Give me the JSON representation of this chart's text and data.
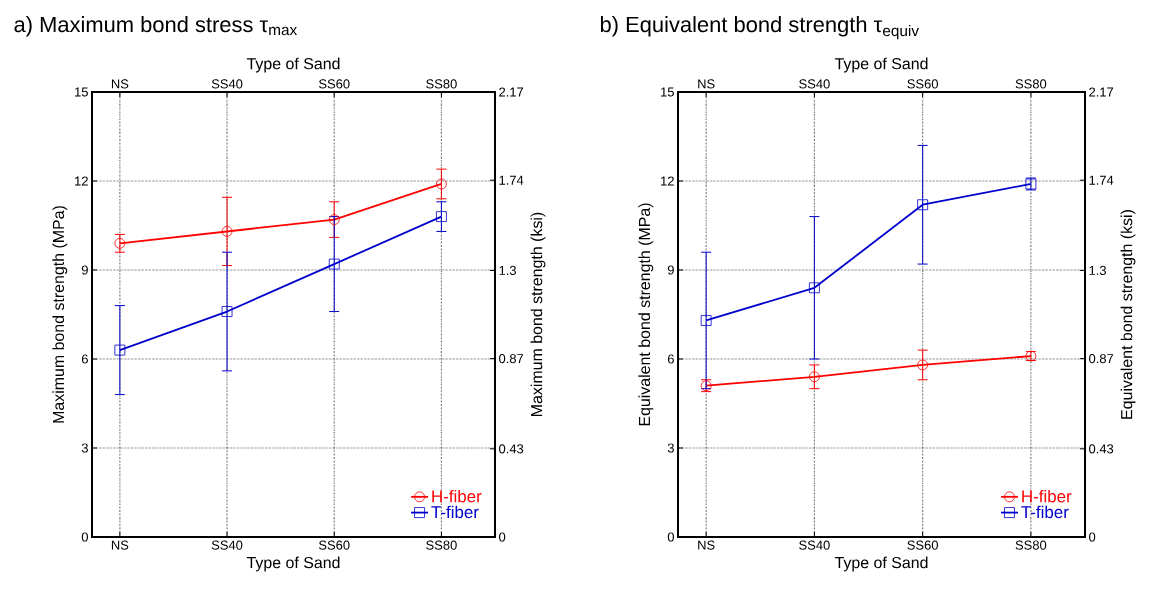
{
  "chart_data": [
    {
      "type": "line",
      "title": "a) Maximum bond stress τ$_{max}$",
      "xlabel": "Type of Sand",
      "x2label": "Type of Sand",
      "ylabel": "Maximum bond strength (MPa)",
      "y2label": "Maximum bond strength (ksi)",
      "categories": [
        "NS",
        "SS40",
        "SS60",
        "SS80"
      ],
      "ylim": [
        0,
        15
      ],
      "yticks": [
        0,
        3,
        6,
        9,
        12,
        15
      ],
      "y2lim": [
        0,
        2.17
      ],
      "y2ticks": [
        0,
        0.43,
        0.87,
        1.3,
        1.74,
        2.17
      ],
      "grid": true,
      "legend": "bottom right",
      "line_style": "solid",
      "series": [
        {
          "name": "H-fiber",
          "color": "#ff0000",
          "marker": "circle",
          "values": [
            9.9,
            10.3,
            10.7,
            11.9
          ],
          "errors": [
            0.3,
            1.15,
            0.6,
            0.5
          ]
        },
        {
          "name": "T-fiber",
          "color": "#0000cc",
          "marker": "square",
          "values": [
            6.3,
            7.6,
            9.2,
            10.8
          ],
          "errors": [
            1.5,
            2.0,
            1.6,
            0.5
          ]
        }
      ]
    },
    {
      "type": "line",
      "title": "b) Equivalent bond strength τ$_{equiv}$",
      "xlabel": "Type of Sand",
      "x2label": "Type of Sand",
      "ylabel": "Equivalent bond strength (MPa)",
      "y2label": "Equivalent bond strength (ksi)",
      "categories": [
        "NS",
        "SS40",
        "SS60",
        "SS80"
      ],
      "ylim": [
        0,
        15
      ],
      "yticks": [
        0,
        3,
        6,
        9,
        12,
        15
      ],
      "y2lim": [
        0,
        2.17
      ],
      "y2ticks": [
        0,
        0.43,
        0.87,
        1.3,
        1.74,
        2.17
      ],
      "grid": true,
      "legend": "bottom right",
      "line_style": "solid",
      "series": [
        {
          "name": "H-fiber",
          "color": "#ff0000",
          "marker": "circle",
          "values": [
            5.1,
            5.4,
            5.8,
            6.1
          ],
          "errors": [
            0.2,
            0.4,
            0.5,
            0.15
          ]
        },
        {
          "name": "T-fiber",
          "color": "#0000cc",
          "marker": "square",
          "values": [
            7.3,
            8.4,
            11.2,
            11.9
          ],
          "errors": [
            2.3,
            2.4,
            2.0,
            0.2
          ]
        }
      ]
    }
  ]
}
